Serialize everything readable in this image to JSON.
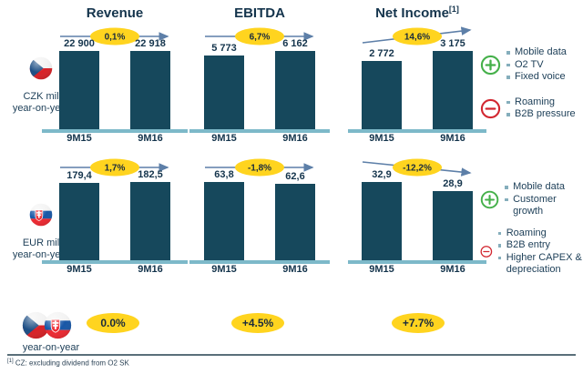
{
  "columns": [
    {
      "label": "Revenue",
      "sup": ""
    },
    {
      "label": "EBITDA",
      "sup": ""
    },
    {
      "label": "Net Income",
      "sup": "[1]"
    }
  ],
  "regions": [
    {
      "name": "Czech Republic",
      "flag": "czech-flag",
      "unit": "CZK mil",
      "period_label": "year-on-year",
      "drivers_positive": [
        "Mobile data",
        "O2 TV",
        "Fixed voice"
      ],
      "drivers_negative": [
        "Roaming",
        "B2B pressure"
      ]
    },
    {
      "name": "Slovakia",
      "flag": "slovak-flag",
      "unit": "EUR mil",
      "period_label": "year-on-year",
      "drivers_positive": [
        "Mobile data",
        "Customer growth"
      ],
      "drivers_negative": [
        "Roaming",
        "B2B entry",
        "Higher CAPEX & depreciation"
      ]
    }
  ],
  "chart_data": [
    {
      "type": "bar",
      "region": "Czech Republic",
      "unit": "CZK mil",
      "metric": "Revenue",
      "categories": [
        "9M15",
        "9M16"
      ],
      "values": [
        22900,
        22918
      ],
      "value_labels": [
        "22 900",
        "22 918"
      ],
      "yoy_change": "0,1%",
      "trend": "flat"
    },
    {
      "type": "bar",
      "region": "Czech Republic",
      "unit": "CZK mil",
      "metric": "EBITDA",
      "categories": [
        "9M15",
        "9M16"
      ],
      "values": [
        5773,
        6162
      ],
      "value_labels": [
        "5 773",
        "6 162"
      ],
      "yoy_change": "6,7%",
      "trend": "flat"
    },
    {
      "type": "bar",
      "region": "Czech Republic",
      "unit": "CZK mil",
      "metric": "Net Income",
      "categories": [
        "9M15",
        "9M16"
      ],
      "values": [
        2772,
        3175
      ],
      "value_labels": [
        "2 772",
        "3 175"
      ],
      "yoy_change": "14,6%",
      "trend": "up"
    },
    {
      "type": "bar",
      "region": "Slovakia",
      "unit": "EUR mil",
      "metric": "Revenue",
      "categories": [
        "9M15",
        "9M16"
      ],
      "values": [
        179.4,
        182.5
      ],
      "value_labels": [
        "179,4",
        "182,5"
      ],
      "yoy_change": "1,7%",
      "trend": "flat"
    },
    {
      "type": "bar",
      "region": "Slovakia",
      "unit": "EUR mil",
      "metric": "EBITDA",
      "categories": [
        "9M15",
        "9M16"
      ],
      "values": [
        63.8,
        62.6
      ],
      "value_labels": [
        "63,8",
        "62,6"
      ],
      "yoy_change": "-1,8%",
      "trend": "flat"
    },
    {
      "type": "bar",
      "region": "Slovakia",
      "unit": "EUR mil",
      "metric": "Net Income",
      "categories": [
        "9M15",
        "9M16"
      ],
      "values": [
        32.9,
        28.9
      ],
      "value_labels": [
        "32,9",
        "28,9"
      ],
      "yoy_change": "-12,2%",
      "trend": "down"
    }
  ],
  "summary": {
    "flags": "czech-and-slovak-flags",
    "period_label": "year-on-year",
    "changes": [
      "0.0%",
      "+4.5%",
      "+7.7%"
    ]
  },
  "footnote": {
    "sup": "[1]",
    "text": "CZ: excluding dividend from O2 SK"
  },
  "colors": {
    "bar": "#16485c",
    "baseline": "#7db9c9",
    "accent_yellow": "#ffd41f",
    "positive_green": "#45b04a",
    "negative_red": "#d22730",
    "navy": "#14344c",
    "arrow": "#5d7fa8"
  }
}
